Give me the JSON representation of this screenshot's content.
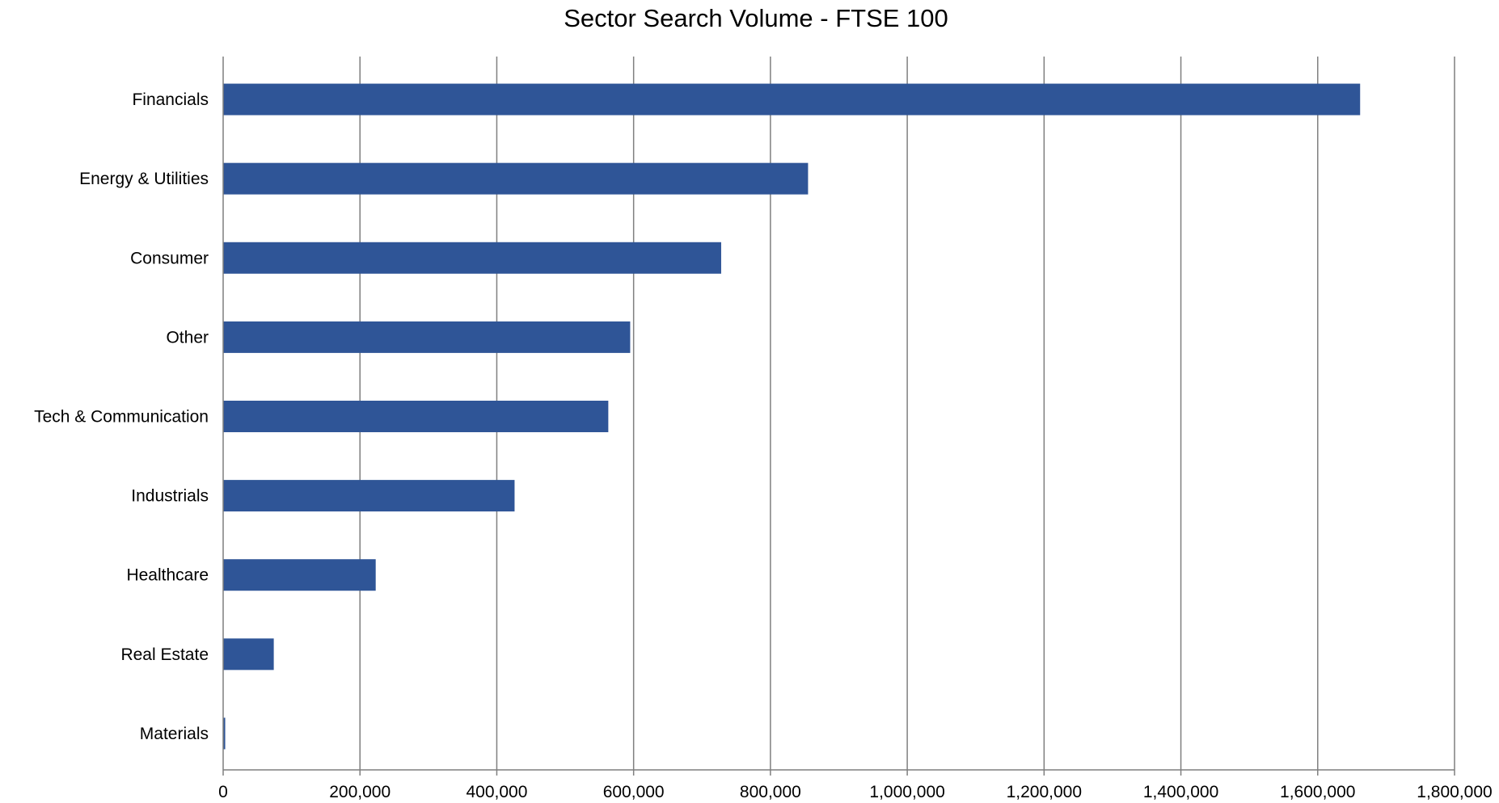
{
  "chart_data": {
    "type": "bar",
    "orientation": "horizontal",
    "title": "Sector Search Volume - FTSE 100",
    "xlabel": "",
    "ylabel": "",
    "categories": [
      "Financials",
      "Energy & Utilities",
      "Consumer",
      "Other",
      "Tech & Communication",
      "Industrials",
      "Healthcare",
      "Real Estate",
      "Materials"
    ],
    "values": [
      1662000,
      855000,
      728000,
      595000,
      563000,
      426000,
      223000,
      74000,
      3000
    ],
    "xlim": [
      0,
      1800000
    ],
    "x_ticks": [
      0,
      200000,
      400000,
      600000,
      800000,
      1000000,
      1200000,
      1400000,
      1600000,
      1800000
    ],
    "x_tick_labels": [
      "0",
      "200,000",
      "400,000",
      "600,000",
      "800,000",
      "1,000,000",
      "1,200,000",
      "1,400,000",
      "1,600,000",
      "1,800,000"
    ],
    "grid": "vertical",
    "legend": "none",
    "bar_color": "#2f5597",
    "grid_color": "#7f7f7f"
  }
}
